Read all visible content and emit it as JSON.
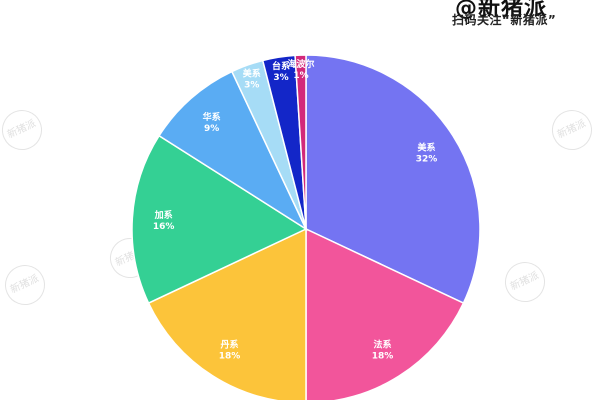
{
  "header": {
    "logo_text": "@新猪派",
    "subtitle": "扫码关注“新猪派”"
  },
  "watermark_text": "新猪派",
  "chart_data": {
    "type": "pie",
    "start_angle_deg": 0,
    "direction": "clockwise",
    "slices": [
      {
        "name": "美系",
        "value": 32,
        "label": "32%",
        "color": "#7474f2"
      },
      {
        "name": "法系",
        "value": 18,
        "label": "18%",
        "color": "#f2559b"
      },
      {
        "name": "丹系",
        "value": 18,
        "label": "18%",
        "color": "#fcc43a"
      },
      {
        "name": "加系",
        "value": 16,
        "label": "16%",
        "color": "#34d094"
      },
      {
        "name": "华系",
        "value": 9,
        "label": "9%",
        "color": "#5aacf3"
      },
      {
        "name": "美系",
        "value": 3,
        "label": "3%",
        "color": "#a6dcf6"
      },
      {
        "name": "台系",
        "value": 3,
        "label": "3%",
        "color": "#1326c8"
      },
      {
        "name": "海波尔",
        "value": 1,
        "label": "1%",
        "color": "#d3297a"
      }
    ]
  }
}
